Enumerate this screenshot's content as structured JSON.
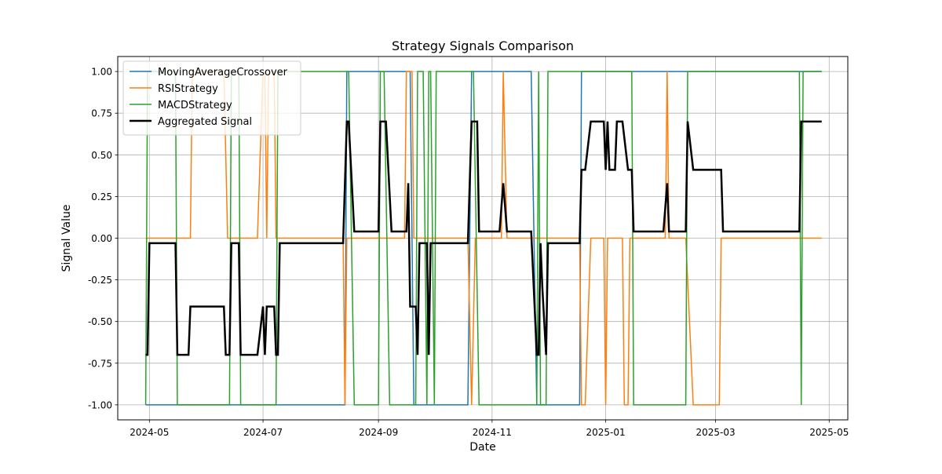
{
  "chart_data": {
    "type": "line",
    "title": "Strategy Signals Comparison",
    "xlabel": "Date",
    "ylabel": "Signal Value",
    "xlim": [
      "2024-04-14",
      "2025-05-11"
    ],
    "ylim": [
      -1.09,
      1.09
    ],
    "grid": true,
    "legend_position": "top-left",
    "x_tick_labels": [
      "2024-05",
      "2024-07",
      "2024-09",
      "2024-11",
      "2025-01",
      "2025-03",
      "2025-05"
    ],
    "y_tick_labels": [
      "1.00",
      "0.75",
      "0.50",
      "0.25",
      "0.00",
      "-0.25",
      "-0.50",
      "-0.75",
      "-1.00"
    ],
    "series": [
      {
        "name": "MovingAverageCrossover",
        "color": "#1f77b4",
        "line_width": 1.5,
        "points": [
          [
            "2024-04-29",
            -1
          ],
          [
            "2024-08-14",
            -1
          ],
          [
            "2024-08-15",
            1
          ],
          [
            "2024-09-18",
            1
          ],
          [
            "2024-09-20",
            -1
          ],
          [
            "2024-10-19",
            -1
          ],
          [
            "2024-10-21",
            1
          ],
          [
            "2024-11-22",
            1
          ],
          [
            "2024-11-25",
            -1
          ],
          [
            "2024-12-18",
            -1
          ],
          [
            "2024-12-19",
            1
          ],
          [
            "2025-04-27",
            1
          ]
        ]
      },
      {
        "name": "RSIStrategy",
        "color": "#ff7f0e",
        "line_width": 1.5,
        "points": [
          [
            "2024-04-29",
            0
          ],
          [
            "2024-05-23",
            0
          ],
          [
            "2024-05-24",
            1
          ],
          [
            "2024-06-10",
            1
          ],
          [
            "2024-06-12",
            0
          ],
          [
            "2024-06-28",
            0
          ],
          [
            "2024-07-01",
            1
          ],
          [
            "2024-07-02",
            1
          ],
          [
            "2024-07-03",
            0
          ],
          [
            "2024-07-04",
            1
          ],
          [
            "2024-07-07",
            1
          ],
          [
            "2024-07-08",
            0
          ],
          [
            "2024-08-13",
            0
          ],
          [
            "2024-08-14",
            -1
          ],
          [
            "2024-08-15",
            0
          ],
          [
            "2024-09-15",
            0
          ],
          [
            "2024-09-16",
            1
          ],
          [
            "2024-09-19",
            1
          ],
          [
            "2024-09-20",
            0
          ],
          [
            "2024-10-19",
            0
          ],
          [
            "2024-10-21",
            -1
          ],
          [
            "2024-10-23",
            0
          ],
          [
            "2024-11-06",
            0
          ],
          [
            "2024-11-07",
            1
          ],
          [
            "2024-11-09",
            0
          ],
          [
            "2024-12-18",
            0
          ],
          [
            "2024-12-19",
            -1
          ],
          [
            "2024-12-21",
            -1
          ],
          [
            "2024-12-24",
            0
          ],
          [
            "2024-12-31",
            0
          ],
          [
            "2025-01-01",
            -1
          ],
          [
            "2025-01-02",
            0
          ],
          [
            "2025-01-06",
            0
          ],
          [
            "2025-01-07",
            0
          ],
          [
            "2025-01-10",
            0
          ],
          [
            "2025-01-11",
            -1
          ],
          [
            "2025-01-13",
            -1
          ],
          [
            "2025-01-14",
            0
          ],
          [
            "2025-02-02",
            0
          ],
          [
            "2025-02-03",
            1
          ],
          [
            "2025-02-04",
            0
          ],
          [
            "2025-02-13",
            0
          ],
          [
            "2025-02-17",
            -1
          ],
          [
            "2025-03-03",
            -1
          ],
          [
            "2025-03-04",
            0
          ],
          [
            "2025-04-27",
            0
          ]
        ]
      },
      {
        "name": "MACDStrategy",
        "color": "#2ca02c",
        "line_width": 1.5,
        "points": [
          [
            "2024-04-29",
            -1
          ],
          [
            "2024-04-30",
            1
          ],
          [
            "2024-05-15",
            1
          ],
          [
            "2024-05-16",
            -1
          ],
          [
            "2024-06-13",
            -1
          ],
          [
            "2024-06-14",
            1
          ],
          [
            "2024-06-18",
            1
          ],
          [
            "2024-06-19",
            -1
          ],
          [
            "2024-07-08",
            -1
          ],
          [
            "2024-07-09",
            1
          ],
          [
            "2024-08-16",
            1
          ],
          [
            "2024-08-19",
            -1
          ],
          [
            "2024-09-01",
            -1
          ],
          [
            "2024-09-02",
            1
          ],
          [
            "2024-09-04",
            1
          ],
          [
            "2024-09-07",
            -1
          ],
          [
            "2024-09-21",
            -1
          ],
          [
            "2024-09-22",
            1
          ],
          [
            "2024-09-25",
            1
          ],
          [
            "2024-09-27",
            -1
          ],
          [
            "2024-09-28",
            1
          ],
          [
            "2024-09-29",
            1
          ],
          [
            "2024-10-01",
            -1
          ],
          [
            "2024-10-02",
            1
          ],
          [
            "2024-10-22",
            1
          ],
          [
            "2024-10-25",
            -1
          ],
          [
            "2024-11-25",
            -1
          ],
          [
            "2024-11-26",
            1
          ],
          [
            "2024-11-27",
            -1
          ],
          [
            "2024-11-30",
            -1
          ],
          [
            "2024-12-01",
            1
          ],
          [
            "2025-01-15",
            1
          ],
          [
            "2025-01-16",
            -1
          ],
          [
            "2025-02-13",
            -1
          ],
          [
            "2025-02-14",
            1
          ],
          [
            "2025-04-15",
            1
          ],
          [
            "2025-04-16",
            -1
          ],
          [
            "2025-04-17",
            1
          ],
          [
            "2025-04-27",
            1
          ]
        ]
      },
      {
        "name": "Aggregated Signal",
        "color": "#000000",
        "line_width": 2.5,
        "points": [
          [
            "2024-04-29",
            -0.7
          ],
          [
            "2024-04-30",
            -0.7
          ],
          [
            "2024-05-01",
            -0.03
          ],
          [
            "2024-05-15",
            -0.03
          ],
          [
            "2024-05-16",
            -0.7
          ],
          [
            "2024-05-22",
            -0.7
          ],
          [
            "2024-05-23",
            -0.41
          ],
          [
            "2024-06-10",
            -0.41
          ],
          [
            "2024-06-11",
            -0.7
          ],
          [
            "2024-06-13",
            -0.7
          ],
          [
            "2024-06-14",
            -0.03
          ],
          [
            "2024-06-18",
            -0.03
          ],
          [
            "2024-06-19",
            -0.7
          ],
          [
            "2024-06-28",
            -0.7
          ],
          [
            "2024-07-01",
            -0.41
          ],
          [
            "2024-07-02",
            -0.7
          ],
          [
            "2024-07-03",
            -0.41
          ],
          [
            "2024-07-07",
            -0.41
          ],
          [
            "2024-07-08",
            -0.7
          ],
          [
            "2024-07-09",
            -0.7
          ],
          [
            "2024-07-10",
            -0.03
          ],
          [
            "2024-08-13",
            -0.03
          ],
          [
            "2024-08-15",
            0.7
          ],
          [
            "2024-08-16",
            0.7
          ],
          [
            "2024-08-19",
            0.04
          ],
          [
            "2024-09-01",
            0.04
          ],
          [
            "2024-09-02",
            0.7
          ],
          [
            "2024-09-05",
            0.7
          ],
          [
            "2024-09-08",
            0.04
          ],
          [
            "2024-09-16",
            0.04
          ],
          [
            "2024-09-17",
            0.33
          ],
          [
            "2024-09-18",
            -0.41
          ],
          [
            "2024-09-21",
            -0.41
          ],
          [
            "2024-09-22",
            -0.7
          ],
          [
            "2024-09-23",
            -0.03
          ],
          [
            "2024-09-27",
            -0.03
          ],
          [
            "2024-09-28",
            -0.7
          ],
          [
            "2024-09-29",
            -0.03
          ],
          [
            "2024-10-19",
            -0.03
          ],
          [
            "2024-10-21",
            0.7
          ],
          [
            "2024-10-24",
            0.7
          ],
          [
            "2024-10-25",
            0.04
          ],
          [
            "2024-11-05",
            0.04
          ],
          [
            "2024-11-07",
            0.33
          ],
          [
            "2024-11-09",
            0.04
          ],
          [
            "2024-11-22",
            0.04
          ],
          [
            "2024-11-25",
            -0.7
          ],
          [
            "2024-11-26",
            -0.7
          ],
          [
            "2024-11-27",
            -0.03
          ],
          [
            "2024-11-28",
            -0.3
          ],
          [
            "2024-11-30",
            -0.7
          ],
          [
            "2024-12-01",
            -0.03
          ],
          [
            "2024-12-18",
            -0.03
          ],
          [
            "2024-12-19",
            0.41
          ],
          [
            "2024-12-21",
            0.41
          ],
          [
            "2024-12-24",
            0.7
          ],
          [
            "2024-12-31",
            0.7
          ],
          [
            "2025-01-01",
            0.41
          ],
          [
            "2025-01-02",
            0.7
          ],
          [
            "2025-01-03",
            0.41
          ],
          [
            "2025-01-06",
            0.41
          ],
          [
            "2025-01-07",
            0.7
          ],
          [
            "2025-01-10",
            0.7
          ],
          [
            "2025-01-13",
            0.41
          ],
          [
            "2025-01-15",
            0.41
          ],
          [
            "2025-01-16",
            0.04
          ],
          [
            "2025-02-01",
            0.04
          ],
          [
            "2025-02-03",
            0.33
          ],
          [
            "2025-02-04",
            0.04
          ],
          [
            "2025-02-13",
            0.04
          ],
          [
            "2025-02-14",
            0.7
          ],
          [
            "2025-02-17",
            0.41
          ],
          [
            "2025-03-04",
            0.41
          ],
          [
            "2025-03-05",
            0.04
          ],
          [
            "2025-04-15",
            0.04
          ],
          [
            "2025-04-16",
            0.7
          ],
          [
            "2025-04-27",
            0.7
          ]
        ]
      }
    ]
  }
}
